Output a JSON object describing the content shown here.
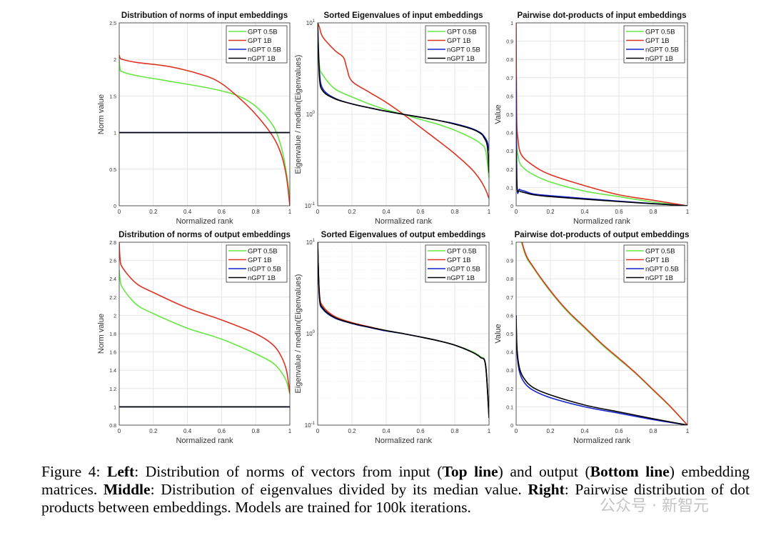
{
  "chart_data": [
    {
      "type": "line",
      "title": "Distribution of norms of input embeddings",
      "xlabel": "Normalized rank",
      "ylabel": "Norm value",
      "xlim": [
        0,
        1
      ],
      "ylim": [
        0,
        2.5
      ],
      "yscale": "linear",
      "xticks": [
        "0",
        "0.2",
        "0.4",
        "0.6",
        "0.8",
        "1"
      ],
      "yticks": [
        "0",
        "0.5",
        "1",
        "1.5",
        "2",
        "2.5"
      ],
      "yticks_values": [
        0,
        0.5,
        1,
        1.5,
        2,
        2.5
      ],
      "grid": true,
      "legend": "top-right",
      "series": [
        {
          "name": "GPT 0.5B",
          "color": "#66e844",
          "x": [
            0,
            0.005,
            0.02,
            0.1,
            0.3,
            0.5,
            0.6,
            0.7,
            0.8,
            0.9,
            0.95,
            0.98,
            1
          ],
          "y": [
            2.0,
            1.87,
            1.83,
            1.78,
            1.7,
            1.62,
            1.57,
            1.5,
            1.36,
            1.1,
            0.8,
            0.45,
            0.1
          ]
        },
        {
          "name": "GPT 1B",
          "color": "#dd3322",
          "x": [
            0,
            0.005,
            0.02,
            0.1,
            0.3,
            0.5,
            0.6,
            0.7,
            0.8,
            0.9,
            0.95,
            0.98,
            1
          ],
          "y": [
            2.06,
            2.02,
            2.0,
            1.96,
            1.9,
            1.78,
            1.67,
            1.48,
            1.25,
            0.95,
            0.7,
            0.4,
            0
          ]
        },
        {
          "name": "nGPT 0.5B",
          "color": "#1122cc",
          "x": [
            0,
            1
          ],
          "y": [
            1,
            1
          ]
        },
        {
          "name": "nGPT 1B",
          "color": "#000000",
          "x": [
            0,
            1
          ],
          "y": [
            1,
            1
          ]
        }
      ]
    },
    {
      "type": "line",
      "title": "Sorted Eigenvalues of input embeddings",
      "xlabel": "Normalized rank",
      "ylabel": "Eigenvalue / median(Eigenvalues)",
      "xlim": [
        0,
        1
      ],
      "ylim": [
        0.1,
        10
      ],
      "yscale": "log",
      "xticks": [
        "0",
        "0.2",
        "0.4",
        "0.6",
        "0.8",
        "1"
      ],
      "yticks": [
        "10^-1",
        "10^0",
        "10^1"
      ],
      "yticks_values": [
        0.1,
        1,
        10
      ],
      "grid": true,
      "legend": "top-right",
      "series": [
        {
          "name": "GPT 0.5B",
          "color": "#66e844",
          "x": [
            0,
            0.01,
            0.03,
            0.1,
            0.2,
            0.3,
            0.4,
            0.5,
            0.6,
            0.7,
            0.8,
            0.9,
            0.95,
            0.98,
            1
          ],
          "y": [
            10,
            3.5,
            2.7,
            1.9,
            1.55,
            1.3,
            1.12,
            1.0,
            0.88,
            0.78,
            0.67,
            0.55,
            0.48,
            0.4,
            0.2
          ]
        },
        {
          "name": "GPT 1B",
          "color": "#dd3322",
          "x": [
            0,
            0.01,
            0.03,
            0.1,
            0.15,
            0.17,
            0.2,
            0.3,
            0.4,
            0.5,
            0.6,
            0.7,
            0.8,
            0.9,
            0.95,
            0.98,
            1
          ],
          "y": [
            10,
            9,
            7,
            5,
            4.2,
            3.2,
            2.3,
            1.75,
            1.35,
            1.0,
            0.72,
            0.52,
            0.37,
            0.25,
            0.19,
            0.15,
            0.12
          ]
        },
        {
          "name": "nGPT 0.5B",
          "color": "#1122cc",
          "x": [
            0,
            0.01,
            0.03,
            0.1,
            0.2,
            0.3,
            0.4,
            0.5,
            0.6,
            0.7,
            0.8,
            0.9,
            0.95,
            0.97,
            0.99,
            1
          ],
          "y": [
            10,
            3,
            1.9,
            1.5,
            1.3,
            1.18,
            1.08,
            1.0,
            0.93,
            0.86,
            0.79,
            0.7,
            0.63,
            0.58,
            0.5,
            0.4
          ]
        },
        {
          "name": "nGPT 1B",
          "color": "#000000",
          "x": [
            0,
            0.01,
            0.03,
            0.1,
            0.2,
            0.3,
            0.4,
            0.5,
            0.6,
            0.7,
            0.8,
            0.9,
            0.95,
            0.97,
            0.99,
            1
          ],
          "y": [
            10,
            2.6,
            1.8,
            1.48,
            1.3,
            1.18,
            1.08,
            1.0,
            0.93,
            0.86,
            0.78,
            0.69,
            0.62,
            0.56,
            0.45,
            0.23
          ]
        }
      ]
    },
    {
      "type": "line",
      "title": "Pairwise dot-products of input embeddings",
      "xlabel": "Normalized rank",
      "ylabel": "Value",
      "xlim": [
        0,
        1
      ],
      "ylim": [
        0,
        1
      ],
      "yscale": "linear",
      "xticks": [
        "0",
        "0.2",
        "0.4",
        "0.6",
        "0.8",
        "1"
      ],
      "yticks": [
        "0",
        "0.1",
        "0.2",
        "0.3",
        "0.4",
        "0.5",
        "0.6",
        "0.7",
        "0.8",
        "0.9",
        "1"
      ],
      "yticks_values": [
        0,
        0.1,
        0.2,
        0.3,
        0.4,
        0.5,
        0.6,
        0.7,
        0.8,
        0.9,
        1
      ],
      "grid": true,
      "legend": "top-right",
      "series": [
        {
          "name": "GPT 0.5B",
          "color": "#66e844",
          "x": [
            0,
            0.003,
            0.01,
            0.03,
            0.1,
            0.2,
            0.4,
            0.6,
            0.8,
            1
          ],
          "y": [
            0.6,
            0.35,
            0.28,
            0.22,
            0.17,
            0.13,
            0.08,
            0.05,
            0.02,
            0
          ]
        },
        {
          "name": "GPT 1B",
          "color": "#dd3322",
          "x": [
            0,
            0.003,
            0.01,
            0.03,
            0.1,
            0.2,
            0.4,
            0.6,
            0.8,
            1
          ],
          "y": [
            1,
            0.5,
            0.37,
            0.28,
            0.22,
            0.17,
            0.11,
            0.06,
            0.03,
            0
          ]
        },
        {
          "name": "nGPT 0.5B",
          "color": "#1122cc",
          "x": [
            0,
            0.005,
            0.02,
            0.05,
            0.1,
            0.2,
            0.4,
            0.6,
            0.8,
            1
          ],
          "y": [
            0.7,
            0.12,
            0.09,
            0.08,
            0.065,
            0.055,
            0.04,
            0.025,
            0.012,
            0
          ]
        },
        {
          "name": "nGPT 1B",
          "color": "#000000",
          "x": [
            0,
            0.005,
            0.02,
            0.05,
            0.1,
            0.2,
            0.4,
            0.6,
            0.8,
            1
          ],
          "y": [
            0.3,
            0.1,
            0.08,
            0.072,
            0.06,
            0.05,
            0.036,
            0.023,
            0.011,
            0
          ]
        }
      ]
    },
    {
      "type": "line",
      "title": "Distribution of norms of output embeddings",
      "xlabel": "Normalized rank",
      "ylabel": "Norm value",
      "xlim": [
        0,
        1
      ],
      "ylim": [
        0.8,
        2.8
      ],
      "yscale": "linear",
      "xticks": [
        "0",
        "0.2",
        "0.4",
        "0.6",
        "0.8",
        "1"
      ],
      "yticks": [
        "0.8",
        "1",
        "1.2",
        "1.4",
        "1.6",
        "1.8",
        "2",
        "2.2",
        "2.4",
        "2.6",
        "2.8"
      ],
      "yticks_values": [
        0.8,
        1,
        1.2,
        1.4,
        1.6,
        1.8,
        2,
        2.2,
        2.4,
        2.6,
        2.8
      ],
      "grid": true,
      "legend": "top-right",
      "series": [
        {
          "name": "GPT 0.5B",
          "color": "#66e844",
          "x": [
            0,
            0.005,
            0.02,
            0.1,
            0.2,
            0.4,
            0.6,
            0.8,
            0.9,
            0.95,
            0.98,
            1
          ],
          "y": [
            2.5,
            2.4,
            2.3,
            2.12,
            2.02,
            1.86,
            1.74,
            1.58,
            1.48,
            1.38,
            1.28,
            1.14
          ]
        },
        {
          "name": "GPT 1B",
          "color": "#dd3322",
          "x": [
            0,
            0.005,
            0.02,
            0.1,
            0.2,
            0.4,
            0.6,
            0.8,
            0.9,
            0.95,
            0.98,
            1
          ],
          "y": [
            2.8,
            2.62,
            2.52,
            2.35,
            2.25,
            2.08,
            1.95,
            1.8,
            1.68,
            1.55,
            1.4,
            1.15
          ]
        },
        {
          "name": "nGPT 0.5B",
          "color": "#1122cc",
          "x": [
            0,
            1
          ],
          "y": [
            1,
            1
          ]
        },
        {
          "name": "nGPT 1B",
          "color": "#000000",
          "x": [
            0,
            1
          ],
          "y": [
            1,
            1
          ]
        }
      ]
    },
    {
      "type": "line",
      "title": "Sorted Eigenvalues of output embeddings",
      "xlabel": "Normalized rank",
      "ylabel": "Eigenvalue / median(Eigenvalues)",
      "xlim": [
        0,
        1
      ],
      "ylim": [
        0.1,
        10
      ],
      "yscale": "log",
      "xticks": [
        "0",
        "0.2",
        "0.4",
        "0.6",
        "0.8",
        "1"
      ],
      "yticks": [
        "10^-1",
        "10^0",
        "10^1"
      ],
      "yticks_values": [
        0.1,
        1,
        10
      ],
      "grid": true,
      "legend": "top-right",
      "series": [
        {
          "name": "GPT 0.5B",
          "color": "#66e844",
          "x": [
            0,
            0.01,
            0.03,
            0.1,
            0.2,
            0.3,
            0.4,
            0.5,
            0.6,
            0.7,
            0.8,
            0.9,
            0.95,
            0.98,
            1
          ],
          "y": [
            10,
            2.7,
            1.95,
            1.52,
            1.31,
            1.18,
            1.08,
            1.0,
            0.92,
            0.84,
            0.75,
            0.64,
            0.56,
            0.46,
            0.13
          ]
        },
        {
          "name": "GPT 1B",
          "color": "#dd3322",
          "x": [
            0,
            0.01,
            0.03,
            0.1,
            0.2,
            0.3,
            0.4,
            0.5,
            0.6,
            0.7,
            0.8,
            0.9,
            0.95,
            0.98,
            1
          ],
          "y": [
            10,
            2.8,
            2.0,
            1.54,
            1.32,
            1.19,
            1.08,
            1.0,
            0.92,
            0.84,
            0.75,
            0.63,
            0.55,
            0.45,
            0.12
          ]
        },
        {
          "name": "nGPT 0.5B",
          "color": "#1122cc",
          "x": [
            0,
            0.01,
            0.03,
            0.1,
            0.2,
            0.3,
            0.4,
            0.5,
            0.6,
            0.7,
            0.8,
            0.9,
            0.95,
            0.98,
            1
          ],
          "y": [
            10,
            2.5,
            1.85,
            1.48,
            1.29,
            1.17,
            1.07,
            1.0,
            0.92,
            0.84,
            0.75,
            0.63,
            0.55,
            0.45,
            0.12
          ]
        },
        {
          "name": "nGPT 1B",
          "color": "#000000",
          "x": [
            0,
            0.01,
            0.03,
            0.1,
            0.2,
            0.3,
            0.4,
            0.5,
            0.6,
            0.7,
            0.8,
            0.9,
            0.95,
            0.98,
            1
          ],
          "y": [
            10,
            2.6,
            1.9,
            1.5,
            1.3,
            1.18,
            1.08,
            1.0,
            0.92,
            0.84,
            0.75,
            0.63,
            0.55,
            0.45,
            0.12
          ]
        }
      ]
    },
    {
      "type": "line",
      "title": "Pairwise dot-products of output embeddings",
      "xlabel": "Normalized rank",
      "ylabel": "Value",
      "xlim": [
        0,
        1
      ],
      "ylim": [
        0,
        1
      ],
      "yscale": "linear",
      "xticks": [
        "0",
        "0.2",
        "0.4",
        "0.6",
        "0.8",
        "1"
      ],
      "yticks": [
        "0",
        "0.1",
        "0.2",
        "0.3",
        "0.4",
        "0.5",
        "0.6",
        "0.7",
        "0.8",
        "0.9",
        "1"
      ],
      "yticks_values": [
        0,
        0.1,
        0.2,
        0.3,
        0.4,
        0.5,
        0.6,
        0.7,
        0.8,
        0.9,
        1
      ],
      "grid": true,
      "legend": "top-right",
      "series": [
        {
          "name": "GPT 0.5B",
          "color": "#66e844",
          "x": [
            0,
            0.05,
            0.1,
            0.2,
            0.3,
            0.4,
            0.5,
            0.6,
            0.7,
            0.8,
            0.9,
            1
          ],
          "y": [
            1.12,
            0.94,
            0.86,
            0.73,
            0.62,
            0.53,
            0.44,
            0.36,
            0.28,
            0.19,
            0.1,
            0
          ]
        },
        {
          "name": "GPT 1B",
          "color": "#dd3322",
          "x": [
            0,
            0.05,
            0.1,
            0.2,
            0.3,
            0.4,
            0.5,
            0.6,
            0.7,
            0.8,
            0.9,
            1
          ],
          "y": [
            1.13,
            0.95,
            0.865,
            0.735,
            0.625,
            0.535,
            0.445,
            0.365,
            0.283,
            0.193,
            0.102,
            0
          ]
        },
        {
          "name": "nGPT 0.5B",
          "color": "#1122cc",
          "x": [
            0,
            0.005,
            0.02,
            0.05,
            0.1,
            0.2,
            0.4,
            0.6,
            0.8,
            1
          ],
          "y": [
            0.6,
            0.4,
            0.29,
            0.23,
            0.19,
            0.15,
            0.1,
            0.065,
            0.03,
            0
          ]
        },
        {
          "name": "nGPT 1B",
          "color": "#000000",
          "x": [
            0,
            0.005,
            0.02,
            0.05,
            0.1,
            0.2,
            0.4,
            0.6,
            0.8,
            1
          ],
          "y": [
            0.6,
            0.42,
            0.31,
            0.25,
            0.205,
            0.165,
            0.11,
            0.072,
            0.035,
            0
          ]
        }
      ]
    }
  ],
  "caption": {
    "segments": [
      {
        "text": "Figure 4:  ",
        "bold": false
      },
      {
        "text": "Left",
        "bold": true
      },
      {
        "text": ": Distribution of norms of vectors from input (",
        "bold": false
      },
      {
        "text": "Top line",
        "bold": true
      },
      {
        "text": ") and output (",
        "bold": false
      },
      {
        "text": "Bottom line",
        "bold": true
      },
      {
        "text": ") embedding matrices.  ",
        "bold": false
      },
      {
        "text": "Middle",
        "bold": true
      },
      {
        "text": ": Distribution of eigenvalues divided by its median value.  ",
        "bold": false
      },
      {
        "text": "Right",
        "bold": true
      },
      {
        "text": ": Pairwise distribution of dot products between embeddings. Models are trained for 100k iterations.",
        "bold": false
      }
    ]
  },
  "watermark": "公众号 · 新智元"
}
